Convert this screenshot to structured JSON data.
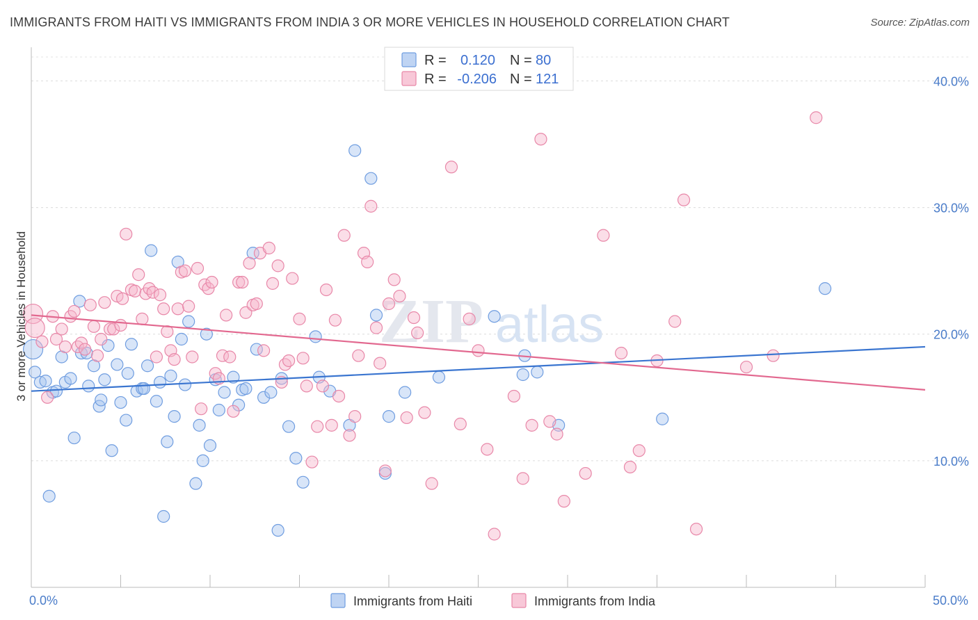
{
  "title": "IMMIGRANTS FROM HAITI VS IMMIGRANTS FROM INDIA 3 OR MORE VEHICLES IN HOUSEHOLD CORRELATION CHART",
  "source": "Source: ZipAtlas.com",
  "watermark": {
    "zip": "ZIP",
    "atlas": "atlas"
  },
  "chart_data": {
    "type": "scatter",
    "title": "IMMIGRANTS FROM HAITI VS IMMIGRANTS FROM INDIA 3 OR MORE VEHICLES IN HOUSEHOLD CORRELATION CHART",
    "xlabel": "",
    "ylabel": "3 or more Vehicles in Household",
    "xlim": [
      0,
      50
    ],
    "ylim": [
      0,
      42
    ],
    "x_tick_labels": [
      {
        "value": 0,
        "label": "0.0%"
      },
      {
        "value": 50,
        "label": "50.0%"
      }
    ],
    "y_tick_labels": [
      {
        "value": 10,
        "label": "10.0%"
      },
      {
        "value": 20,
        "label": "20.0%"
      },
      {
        "value": 30,
        "label": "30.0%"
      },
      {
        "value": 40,
        "label": "40.0%"
      }
    ],
    "legend": {
      "placement": "top-center",
      "rows": [
        {
          "r_label": "R =",
          "r_value": "0.120",
          "n_label": "N =",
          "n_value": "80",
          "color": "#a9c6ef"
        },
        {
          "r_label": "R =",
          "r_value": "-0.206",
          "n_label": "N =",
          "n_value": "121",
          "color": "#f6b6cb"
        }
      ]
    },
    "series": [
      {
        "name": "Immigrants from Haiti",
        "color": "#a9c6ef",
        "stroke": "#6f9de0",
        "line_color": "#3a75d0",
        "trend": {
          "x": [
            0,
            50
          ],
          "y": [
            15.5,
            19.0
          ]
        },
        "points": [
          [
            0.1,
            18.8
          ],
          [
            0.2,
            17.0
          ],
          [
            0.5,
            16.2
          ],
          [
            0.8,
            16.3
          ],
          [
            1.0,
            7.2
          ],
          [
            1.2,
            15.4
          ],
          [
            1.4,
            15.5
          ],
          [
            1.7,
            18.2
          ],
          [
            1.9,
            16.2
          ],
          [
            2.2,
            16.5
          ],
          [
            2.4,
            11.8
          ],
          [
            2.7,
            22.6
          ],
          [
            2.8,
            18.5
          ],
          [
            3.1,
            18.5
          ],
          [
            3.2,
            15.9
          ],
          [
            3.5,
            17.5
          ],
          [
            3.8,
            14.3
          ],
          [
            3.9,
            14.8
          ],
          [
            4.1,
            16.4
          ],
          [
            4.3,
            19.1
          ],
          [
            4.5,
            10.8
          ],
          [
            4.8,
            17.6
          ],
          [
            5.0,
            14.6
          ],
          [
            5.3,
            13.2
          ],
          [
            5.4,
            16.9
          ],
          [
            5.6,
            19.2
          ],
          [
            5.9,
            15.5
          ],
          [
            6.2,
            15.7
          ],
          [
            6.3,
            15.7
          ],
          [
            6.5,
            17.5
          ],
          [
            6.7,
            26.6
          ],
          [
            7.0,
            14.7
          ],
          [
            7.2,
            16.2
          ],
          [
            7.4,
            5.6
          ],
          [
            7.6,
            11.5
          ],
          [
            7.8,
            16.7
          ],
          [
            8.0,
            13.5
          ],
          [
            8.2,
            25.7
          ],
          [
            8.4,
            19.6
          ],
          [
            8.6,
            16.0
          ],
          [
            8.8,
            21.0
          ],
          [
            9.2,
            8.2
          ],
          [
            9.4,
            12.8
          ],
          [
            9.6,
            10.0
          ],
          [
            9.8,
            20.0
          ],
          [
            10.0,
            11.2
          ],
          [
            10.3,
            16.4
          ],
          [
            10.5,
            14.0
          ],
          [
            10.8,
            15.4
          ],
          [
            11.3,
            16.6
          ],
          [
            11.6,
            14.4
          ],
          [
            11.8,
            15.6
          ],
          [
            12.0,
            15.7
          ],
          [
            12.4,
            26.4
          ],
          [
            12.6,
            18.8
          ],
          [
            13.0,
            15.0
          ],
          [
            13.4,
            15.4
          ],
          [
            13.8,
            4.5
          ],
          [
            14.0,
            16.5
          ],
          [
            14.4,
            12.7
          ],
          [
            14.8,
            10.2
          ],
          [
            15.2,
            8.3
          ],
          [
            15.9,
            19.8
          ],
          [
            16.1,
            16.6
          ],
          [
            16.7,
            15.5
          ],
          [
            17.8,
            12.8
          ],
          [
            18.1,
            34.5
          ],
          [
            19.0,
            32.3
          ],
          [
            19.3,
            21.5
          ],
          [
            19.8,
            9.0
          ],
          [
            20.0,
            13.5
          ],
          [
            20.9,
            15.4
          ],
          [
            22.8,
            16.6
          ],
          [
            25.9,
            21.4
          ],
          [
            27.5,
            16.8
          ],
          [
            27.6,
            18.3
          ],
          [
            28.3,
            17.0
          ],
          [
            29.5,
            12.8
          ],
          [
            35.3,
            13.3
          ],
          [
            44.4,
            23.6
          ]
        ]
      },
      {
        "name": "Immigrants from India",
        "color": "#f6b6cb",
        "stroke": "#e887a8",
        "line_color": "#e2688f",
        "trend": {
          "x": [
            0,
            50
          ],
          "y": [
            21.5,
            15.6
          ]
        },
        "points": [
          [
            0.1,
            21.6
          ],
          [
            0.2,
            20.5
          ],
          [
            0.6,
            19.4
          ],
          [
            0.9,
            15.0
          ],
          [
            1.2,
            21.4
          ],
          [
            1.4,
            19.6
          ],
          [
            1.7,
            20.4
          ],
          [
            1.9,
            19.0
          ],
          [
            2.2,
            21.4
          ],
          [
            2.4,
            21.8
          ],
          [
            2.6,
            19.0
          ],
          [
            2.8,
            19.3
          ],
          [
            3.0,
            18.8
          ],
          [
            3.3,
            22.3
          ],
          [
            3.5,
            20.6
          ],
          [
            3.7,
            18.3
          ],
          [
            3.9,
            19.6
          ],
          [
            4.1,
            22.5
          ],
          [
            4.4,
            20.4
          ],
          [
            4.6,
            20.4
          ],
          [
            4.8,
            23.0
          ],
          [
            5.0,
            20.7
          ],
          [
            5.1,
            22.8
          ],
          [
            5.3,
            27.9
          ],
          [
            5.6,
            23.5
          ],
          [
            5.8,
            23.4
          ],
          [
            6.0,
            24.7
          ],
          [
            6.2,
            21.2
          ],
          [
            6.4,
            23.2
          ],
          [
            6.6,
            23.6
          ],
          [
            6.8,
            23.3
          ],
          [
            7.0,
            18.2
          ],
          [
            7.2,
            23.1
          ],
          [
            7.4,
            22.0
          ],
          [
            7.6,
            20.2
          ],
          [
            7.8,
            18.7
          ],
          [
            8.0,
            18.0
          ],
          [
            8.2,
            22.0
          ],
          [
            8.4,
            24.9
          ],
          [
            8.6,
            25.0
          ],
          [
            8.8,
            22.2
          ],
          [
            9.0,
            18.2
          ],
          [
            9.3,
            25.2
          ],
          [
            9.5,
            14.1
          ],
          [
            9.7,
            23.9
          ],
          [
            9.9,
            23.6
          ],
          [
            10.1,
            24.1
          ],
          [
            10.3,
            16.9
          ],
          [
            10.5,
            16.5
          ],
          [
            10.7,
            18.3
          ],
          [
            10.9,
            21.5
          ],
          [
            11.1,
            18.2
          ],
          [
            11.3,
            13.9
          ],
          [
            11.6,
            24.1
          ],
          [
            11.8,
            24.1
          ],
          [
            12.0,
            21.7
          ],
          [
            12.2,
            25.6
          ],
          [
            12.4,
            22.3
          ],
          [
            12.6,
            22.4
          ],
          [
            12.8,
            26.4
          ],
          [
            13.0,
            18.7
          ],
          [
            13.3,
            26.8
          ],
          [
            13.5,
            24.0
          ],
          [
            13.8,
            25.4
          ],
          [
            14.0,
            16.2
          ],
          [
            14.2,
            17.6
          ],
          [
            14.4,
            17.9
          ],
          [
            14.6,
            24.4
          ],
          [
            15.0,
            21.2
          ],
          [
            15.2,
            18.1
          ],
          [
            15.4,
            15.9
          ],
          [
            15.7,
            9.9
          ],
          [
            16.0,
            12.7
          ],
          [
            16.3,
            15.9
          ],
          [
            16.5,
            23.5
          ],
          [
            16.8,
            12.8
          ],
          [
            17.0,
            21.1
          ],
          [
            17.2,
            15.1
          ],
          [
            17.5,
            27.8
          ],
          [
            17.8,
            12.0
          ],
          [
            18.1,
            13.5
          ],
          [
            18.3,
            18.3
          ],
          [
            18.6,
            26.4
          ],
          [
            18.8,
            25.7
          ],
          [
            19.0,
            30.1
          ],
          [
            19.3,
            20.5
          ],
          [
            19.5,
            17.7
          ],
          [
            19.8,
            9.2
          ],
          [
            20.0,
            22.4
          ],
          [
            20.3,
            24.3
          ],
          [
            20.6,
            23.0
          ],
          [
            21.0,
            13.4
          ],
          [
            21.4,
            21.3
          ],
          [
            21.6,
            20.1
          ],
          [
            22.0,
            13.8
          ],
          [
            22.4,
            8.2
          ],
          [
            23.5,
            33.2
          ],
          [
            24.0,
            12.9
          ],
          [
            24.5,
            21.2
          ],
          [
            25.0,
            18.7
          ],
          [
            25.5,
            10.9
          ],
          [
            25.9,
            4.2
          ],
          [
            27.0,
            15.1
          ],
          [
            27.5,
            8.6
          ],
          [
            28.0,
            12.8
          ],
          [
            28.5,
            35.4
          ],
          [
            29.0,
            13.1
          ],
          [
            29.4,
            12.1
          ],
          [
            29.8,
            6.8
          ],
          [
            31.0,
            9.0
          ],
          [
            32.0,
            27.8
          ],
          [
            33.0,
            18.5
          ],
          [
            33.5,
            9.5
          ],
          [
            34.0,
            10.8
          ],
          [
            35.0,
            17.9
          ],
          [
            36.0,
            21.0
          ],
          [
            36.5,
            30.6
          ],
          [
            37.2,
            4.6
          ],
          [
            40.0,
            17.4
          ],
          [
            41.5,
            18.3
          ],
          [
            43.9,
            37.1
          ]
        ]
      }
    ]
  }
}
